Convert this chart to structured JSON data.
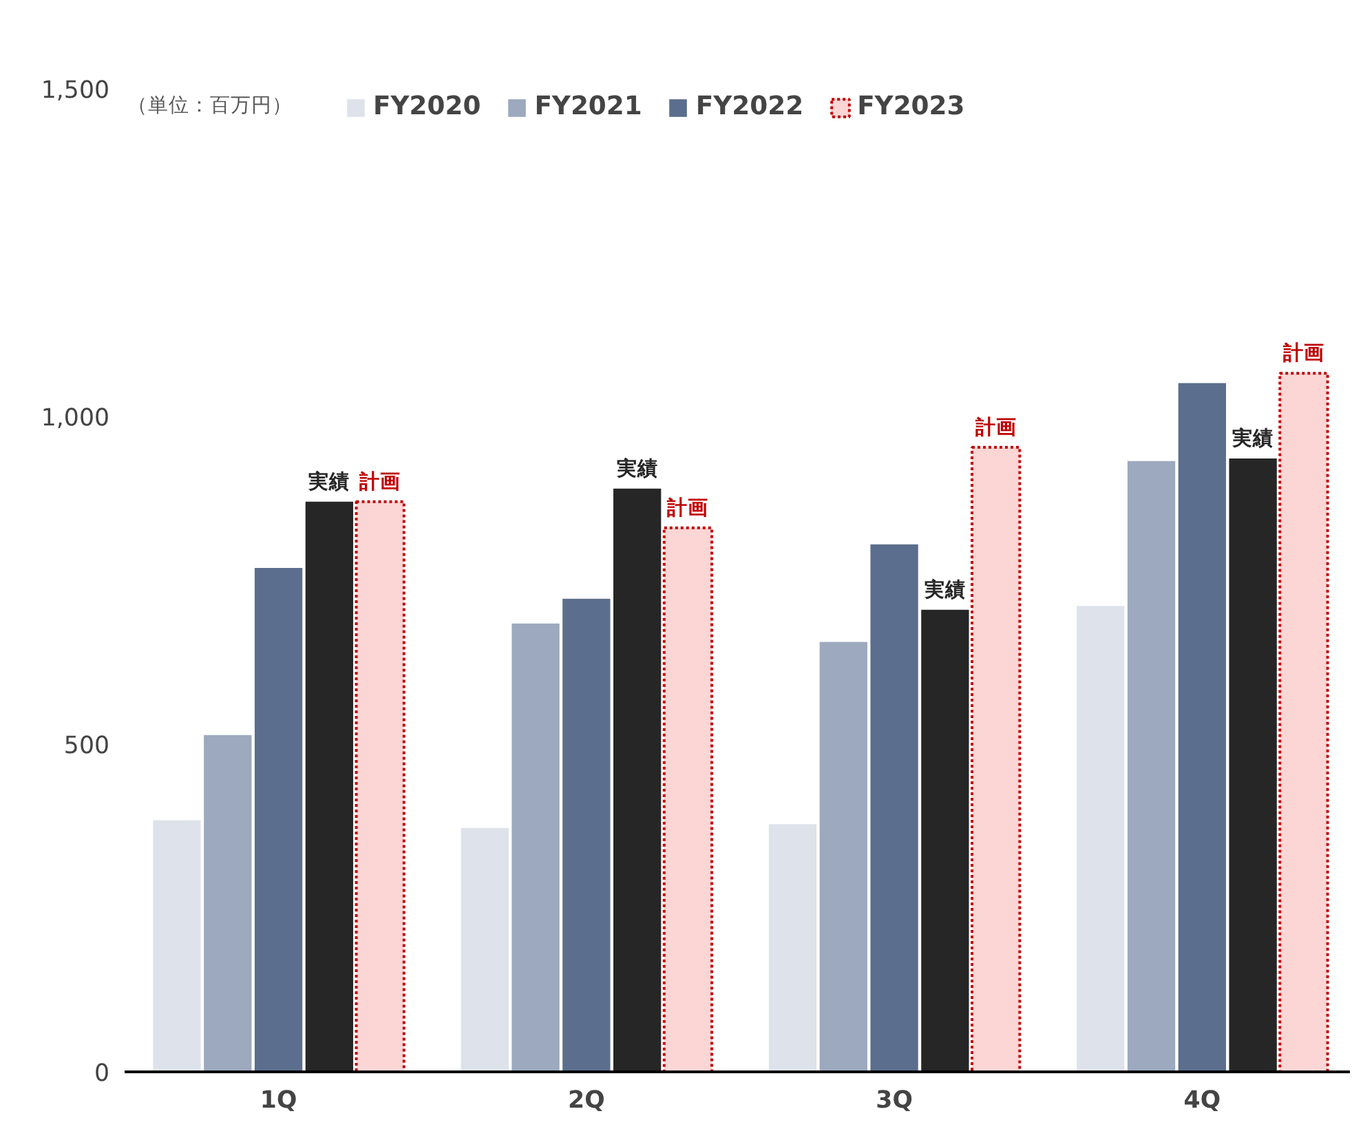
{
  "chart_data": {
    "type": "bar",
    "categories": [
      "1Q",
      "2Q",
      "3Q",
      "4Q"
    ],
    "series": [
      {
        "name": "FY2020",
        "color": "#dee2ea",
        "values": [
          384,
          372,
          378,
          711
        ]
      },
      {
        "name": "FY2021",
        "color": "#9ca9be",
        "values": [
          514,
          684,
          656,
          932
        ]
      },
      {
        "name": "FY2022",
        "color": "#5b6e8d",
        "values": [
          769,
          722,
          805,
          1051
        ]
      },
      {
        "name": "FY2023",
        "color": "#262626",
        "values": [
          870,
          890,
          705,
          936
        ],
        "value_labels": [
          "実績",
          "実績",
          "実績",
          "実績"
        ]
      },
      {
        "color": "#fcd5d5",
        "line_style": "dotted",
        "values": [
          870,
          830,
          953,
          1066
        ],
        "value_labels": [
          "計画",
          "計画",
          "計画",
          "計画"
        ]
      }
    ],
    "ylim": [
      0,
      1500
    ],
    "yticks": [
      0,
      500,
      {
        "value": 1000,
        "label": "1,000"
      },
      {
        "value": 1500,
        "label": "1,500"
      }
    ],
    "grid": false,
    "legend": "top left",
    "annotations": [
      "（単位：百万円）"
    ]
  }
}
